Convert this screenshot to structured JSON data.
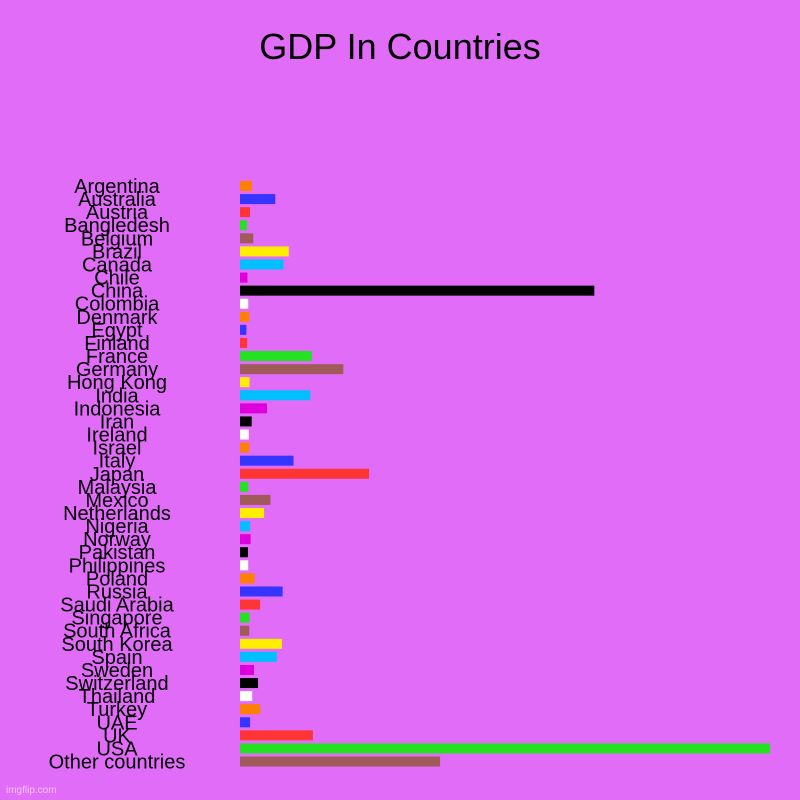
{
  "chart_data": {
    "type": "bar",
    "orientation": "horizontal",
    "title": "GDP In Countries",
    "categories": [
      "Argentina",
      "Australia",
      "Austria",
      "Bangledesh",
      "Belgium",
      "Brazil",
      "Canada",
      "Chile",
      "China",
      "Colombia",
      "Denmark",
      "Egypt",
      "Finland",
      "France",
      "Germany",
      "Hong Kong",
      "India",
      "Indonesia",
      "Iran",
      "Ireland",
      "Israel",
      "Italy",
      "Japan",
      "Malaysia",
      "Mexico",
      "Netherlands",
      "Nigeria",
      "Norway",
      "Pakistan",
      "Philippines",
      "Poland",
      "Russia",
      "Saudi Arabia",
      "Singapore",
      "South Africa",
      "South Korea",
      "Spain",
      "Sweden",
      "Switzerland",
      "Thailand",
      "Turkey",
      "UAE",
      "UK",
      "USA",
      "Other countries"
    ],
    "values": [
      0.45,
      1.33,
      0.38,
      0.26,
      0.5,
      1.84,
      1.64,
      0.28,
      13.37,
      0.31,
      0.35,
      0.24,
      0.27,
      2.71,
      3.9,
      0.36,
      2.65,
      1.02,
      0.44,
      0.33,
      0.35,
      2.02,
      4.87,
      0.31,
      1.15,
      0.91,
      0.38,
      0.4,
      0.3,
      0.31,
      0.55,
      1.61,
      0.76,
      0.36,
      0.35,
      1.58,
      1.39,
      0.53,
      0.68,
      0.46,
      0.76,
      0.38,
      2.75,
      20.0,
      7.55
    ],
    "colors": [
      "#ff7f00",
      "#3535ff",
      "#ff3535",
      "#22e222",
      "#a05a5a",
      "#ffee00",
      "#00bfff",
      "#dd00dd",
      "#000000",
      "#ffffff"
    ],
    "xlim": [
      0,
      20
    ],
    "axes_visible": false,
    "grid": false,
    "legend": "none"
  },
  "watermark": "imgflip.com"
}
